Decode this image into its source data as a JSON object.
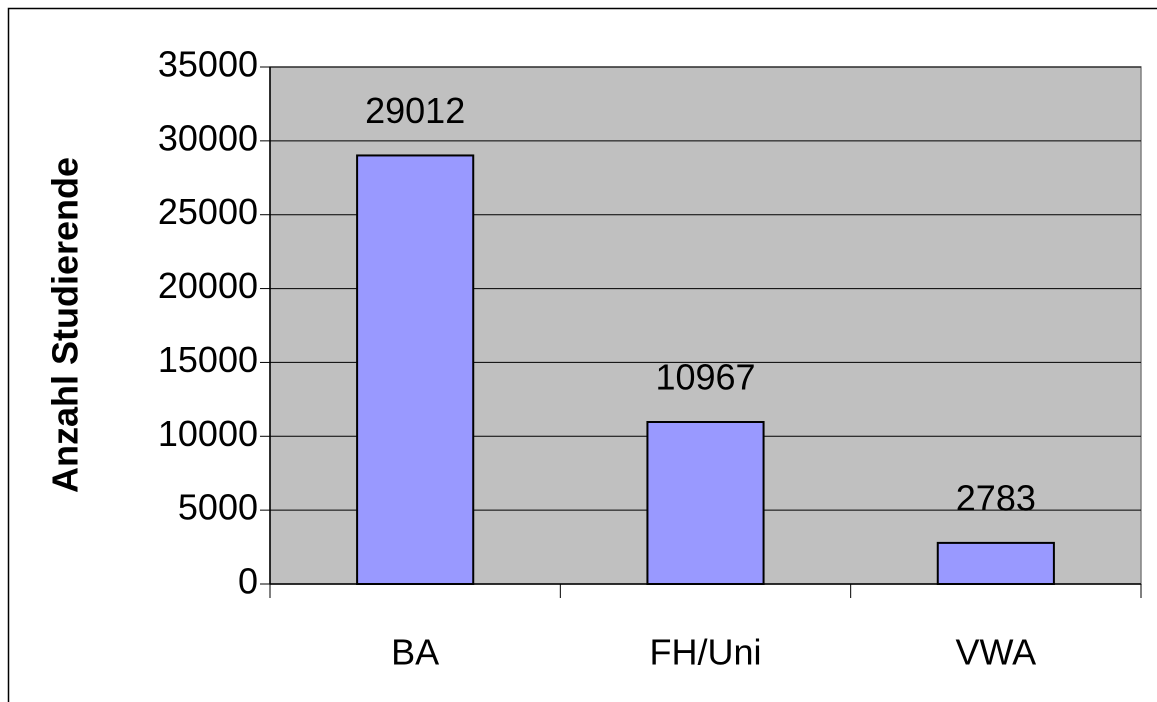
{
  "chart_data": {
    "type": "bar",
    "y_label": "Anzahl Studierende",
    "categories": [
      "BA",
      "FH/Uni",
      "VWA"
    ],
    "values": [
      29012,
      10967,
      2783
    ],
    "color": "#9999ff",
    "ylim": [
      0,
      35000
    ],
    "yticks": [
      0,
      5000,
      10000,
      15000,
      20000,
      25000,
      30000,
      35000
    ],
    "grid": true
  }
}
